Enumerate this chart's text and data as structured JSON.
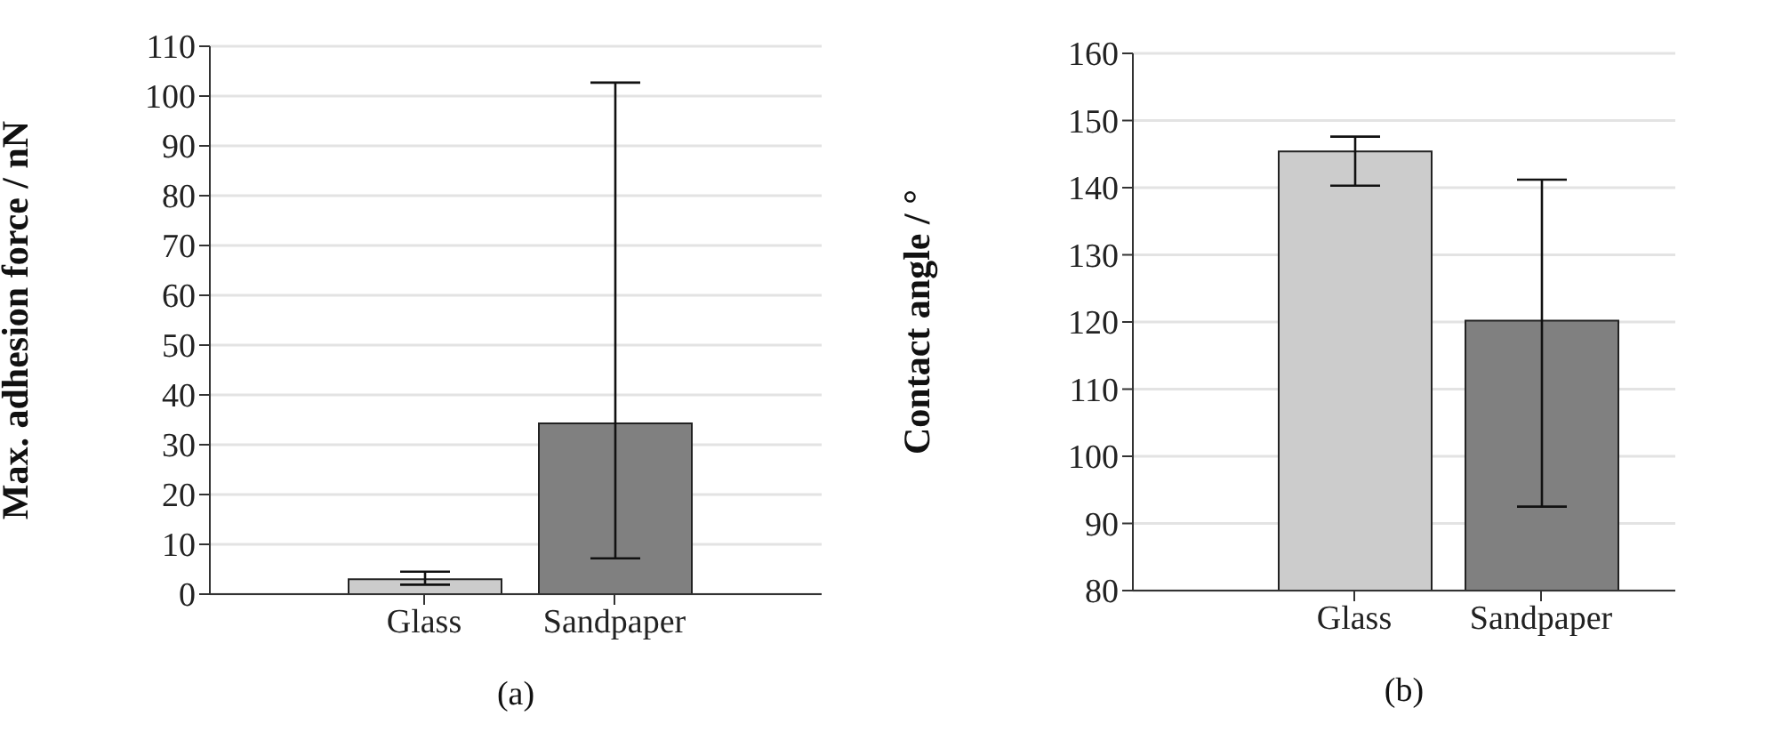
{
  "chart_data": [
    {
      "type": "bar",
      "ylabel": "Max. adhesion force / nN",
      "categories": [
        "Glass",
        "Sandpaper"
      ],
      "values": [
        3.0,
        34.3
      ],
      "colors": [
        "#cccccc",
        "#808080"
      ],
      "errors": [
        [
          1.9,
          4.5
        ],
        [
          7.2,
          102.7
        ]
      ],
      "ylim": [
        0,
        110
      ],
      "yticks": [
        0,
        10,
        20,
        30,
        40,
        50,
        60,
        70,
        80,
        90,
        100,
        110
      ],
      "grid": "y",
      "annotations": [
        "(a)"
      ]
    },
    {
      "type": "bar",
      "ylabel": "Contact angle / °",
      "categories": [
        "Glass",
        "Sandpaper"
      ],
      "values": [
        145.4,
        120.2
      ],
      "colors": [
        "#cccccc",
        "#808080"
      ],
      "errors": [
        [
          140.3,
          147.6
        ],
        [
          92.5,
          141.2
        ]
      ],
      "ylim": [
        80,
        160
      ],
      "yticks": [
        80,
        90,
        100,
        110,
        120,
        130,
        140,
        150,
        160
      ],
      "grid": "y",
      "annotations": [
        "(b)"
      ]
    }
  ]
}
